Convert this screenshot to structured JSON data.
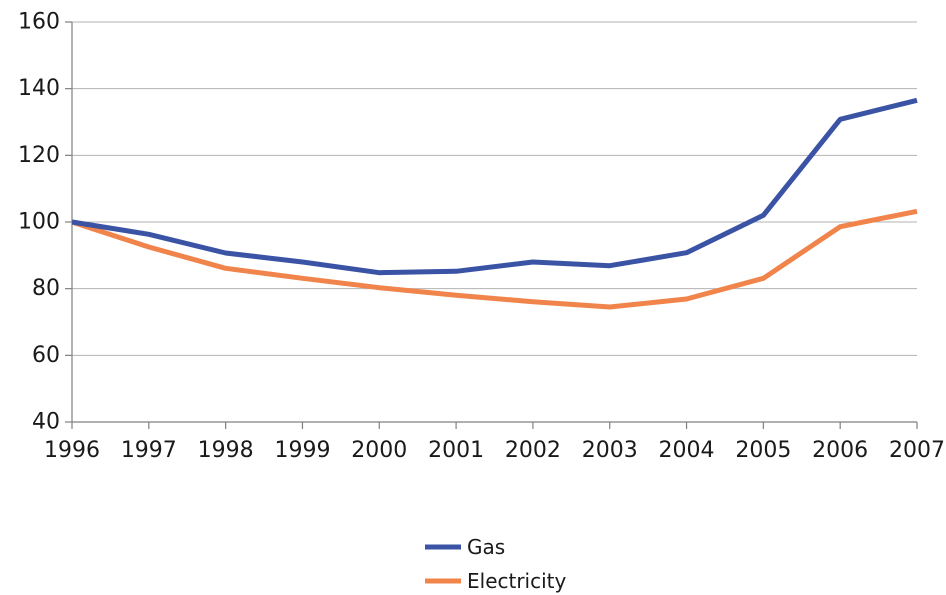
{
  "chart_data": {
    "type": "line",
    "title": "",
    "xlabel": "",
    "ylabel": "",
    "x": [
      "1996",
      "1997",
      "1998",
      "1999",
      "2000",
      "2001",
      "2002",
      "2003",
      "2004",
      "2005",
      "2006",
      "2007"
    ],
    "ylim": [
      40,
      160
    ],
    "yticks": [
      40,
      60,
      80,
      100,
      120,
      140,
      160
    ],
    "grid": true,
    "legend_position": "bottom-center",
    "series": [
      {
        "name": "Gas",
        "color": "#3a53a4",
        "values": [
          100,
          96.3,
          90.7,
          88.0,
          84.8,
          85.2,
          88.0,
          86.9,
          90.8,
          102.0,
          130.8,
          136.5
        ]
      },
      {
        "name": "Electricity",
        "color": "#f0844a",
        "values": [
          100,
          92.5,
          86.1,
          83.1,
          80.3,
          78.0,
          76.1,
          74.5,
          76.9,
          83.1,
          98.6,
          103.2
        ]
      }
    ]
  }
}
